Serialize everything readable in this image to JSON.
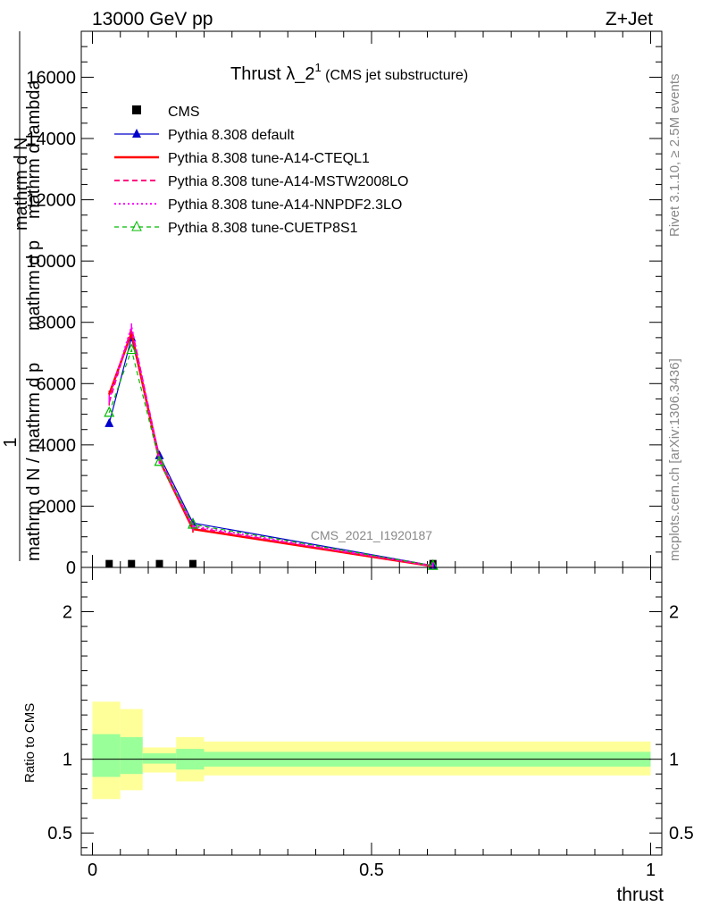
{
  "header": {
    "left": "13000 GeV pp",
    "right": "Z+Jet"
  },
  "title": {
    "main": "Thrust λ_2",
    "sup": "1",
    "sub": " (CMS jet substructure)"
  },
  "side_text": {
    "top": "Rivet 3.1.10, ≥ 2.5M events",
    "bottom": "mcplots.cern.ch [arXiv:1306.3436]"
  },
  "watermark": "CMS_2021_I1920187",
  "colors": {
    "cms": "#000000",
    "default": "#0000cc",
    "cteql1": "#ff0000",
    "mstw": "#ff0080",
    "nnpdf": "#ff00ff",
    "cuetp8s1": "#00bb00",
    "band_inner": "#99ff99",
    "band_outer": "#ffff99"
  },
  "chart_data": [
    {
      "type": "line",
      "panel": "main",
      "ylabel_parts": [
        "1",
        "mathrm d N / mathrm d p",
        "mathrm d N",
        "mathrm d p",
        "mathrm d lambda"
      ],
      "ylim": [
        0,
        17500
      ],
      "xlim": [
        -0.02,
        1.02
      ],
      "yticks": [
        0,
        2000,
        4000,
        6000,
        8000,
        10000,
        12000,
        14000,
        16000
      ],
      "ytick_labels": [
        "0",
        "2000",
        "4000",
        "6000",
        "8000",
        "10000",
        "12000",
        "14000",
        "16000"
      ],
      "x": [
        0.03,
        0.07,
        0.12,
        0.18,
        0.61
      ],
      "series": [
        {
          "name": "CMS",
          "key": "cms",
          "style": "square",
          "values": [
            10,
            10,
            10,
            10,
            10
          ]
        },
        {
          "name": "Pythia 8.308 default",
          "key": "default",
          "style": "solid-triangle",
          "values": [
            4700,
            7500,
            3650,
            1450,
            60
          ]
        },
        {
          "name": "Pythia 8.308 tune-A14-CTEQL1",
          "key": "cteql1",
          "style": "solid-thick",
          "values": [
            5650,
            7650,
            3500,
            1250,
            40
          ]
        },
        {
          "name": "Pythia 8.308 tune-A14-MSTW2008LO",
          "key": "mstw",
          "style": "dashed",
          "values": [
            5400,
            7800,
            3550,
            1300,
            45
          ]
        },
        {
          "name": "Pythia 8.308 tune-A14-NNPDF2.3LO",
          "key": "nnpdf",
          "style": "dotted",
          "values": [
            5500,
            7850,
            3500,
            1350,
            50
          ]
        },
        {
          "name": "Pythia 8.308 tune-CUETP8S1",
          "key": "cuetp8s1",
          "style": "dashed-open-triangle",
          "values": [
            5050,
            7100,
            3450,
            1400,
            55
          ]
        }
      ]
    },
    {
      "type": "area",
      "panel": "ratio",
      "ylabel": "Ratio to CMS",
      "xlabel": "thrust",
      "xlim": [
        -0.02,
        1.02
      ],
      "ylim": [
        0.35,
        2.3
      ],
      "xticks": [
        0,
        0.5,
        1
      ],
      "xtick_labels": [
        "0",
        "0.5",
        "1"
      ],
      "yticks": [
        0.5,
        1,
        2
      ],
      "ytick_labels": [
        "0.5",
        "1",
        "2"
      ],
      "bins": [
        {
          "lo": 0.0,
          "hi": 0.05,
          "inner": [
            0.88,
            1.17
          ],
          "outer": [
            0.73,
            1.39
          ]
        },
        {
          "lo": 0.05,
          "hi": 0.09,
          "inner": [
            0.9,
            1.15
          ],
          "outer": [
            0.79,
            1.34
          ]
        },
        {
          "lo": 0.09,
          "hi": 0.15,
          "inner": [
            0.97,
            1.04
          ],
          "outer": [
            0.91,
            1.08
          ]
        },
        {
          "lo": 0.15,
          "hi": 0.2,
          "inner": [
            0.93,
            1.07
          ],
          "outer": [
            0.85,
            1.15
          ]
        },
        {
          "lo": 0.2,
          "hi": 1.0,
          "inner": [
            0.95,
            1.05
          ],
          "outer": [
            0.89,
            1.12
          ]
        }
      ]
    }
  ]
}
